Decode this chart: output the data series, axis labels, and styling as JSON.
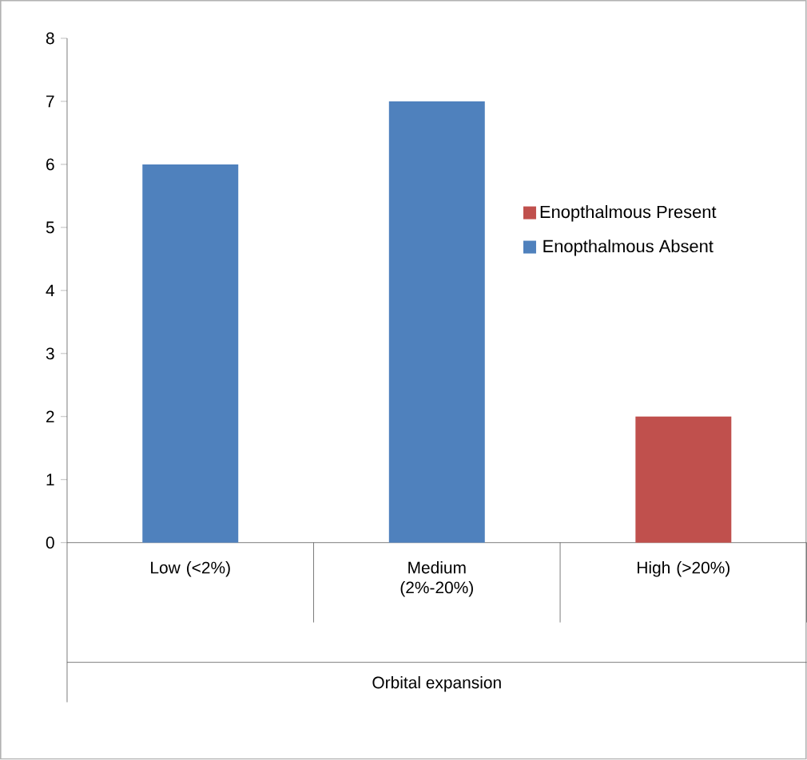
{
  "chart_data": {
    "type": "bar",
    "xlabel": "Orbital expansion",
    "categories": [
      "Low (<2%)",
      "Medium (2%-20%)",
      "High (>20%)"
    ],
    "series": [
      {
        "name": "Enopthalmous Present",
        "color": "#c0504d",
        "values": [
          null,
          null,
          2
        ]
      },
      {
        "name": "Enopthalmous Absent",
        "color": "#4f81bd",
        "values": [
          6,
          7,
          null
        ]
      }
    ],
    "ylim": [
      0,
      8
    ],
    "yticks": [
      0,
      1,
      2,
      3,
      4,
      5,
      6,
      7,
      8
    ],
    "legend": "right"
  }
}
